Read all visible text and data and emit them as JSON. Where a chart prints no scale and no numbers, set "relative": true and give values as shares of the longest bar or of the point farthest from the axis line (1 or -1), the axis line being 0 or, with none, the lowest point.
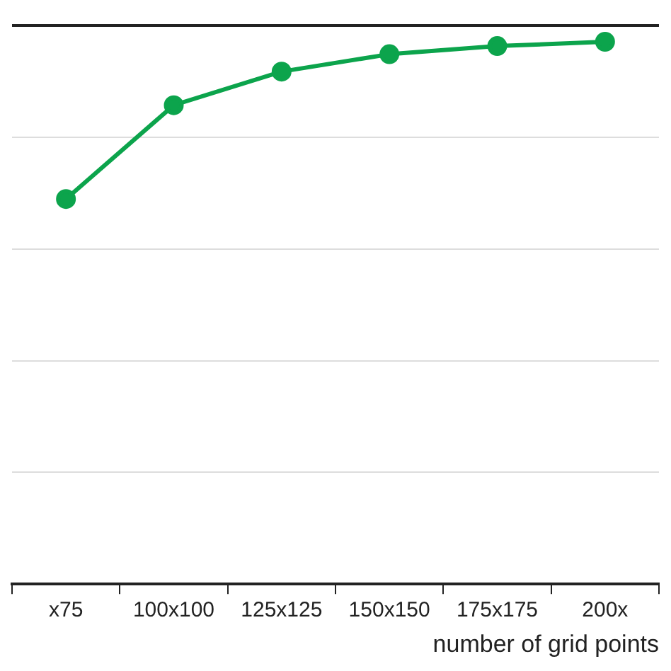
{
  "chart_data": {
    "type": "line",
    "xlabel": "number of grid points",
    "relative": true,
    "categories": [
      "x75",
      "100x100",
      "125x125",
      "150x150",
      "175x175",
      "200x"
    ],
    "series": [
      {
        "color": "#0ca44c",
        "values": [
          0.71,
          0.883,
          0.945,
          0.977,
          0.992,
          1
        ]
      }
    ],
    "marker": "circle",
    "line_style": "solid",
    "grid": "y",
    "legend": false
  }
}
